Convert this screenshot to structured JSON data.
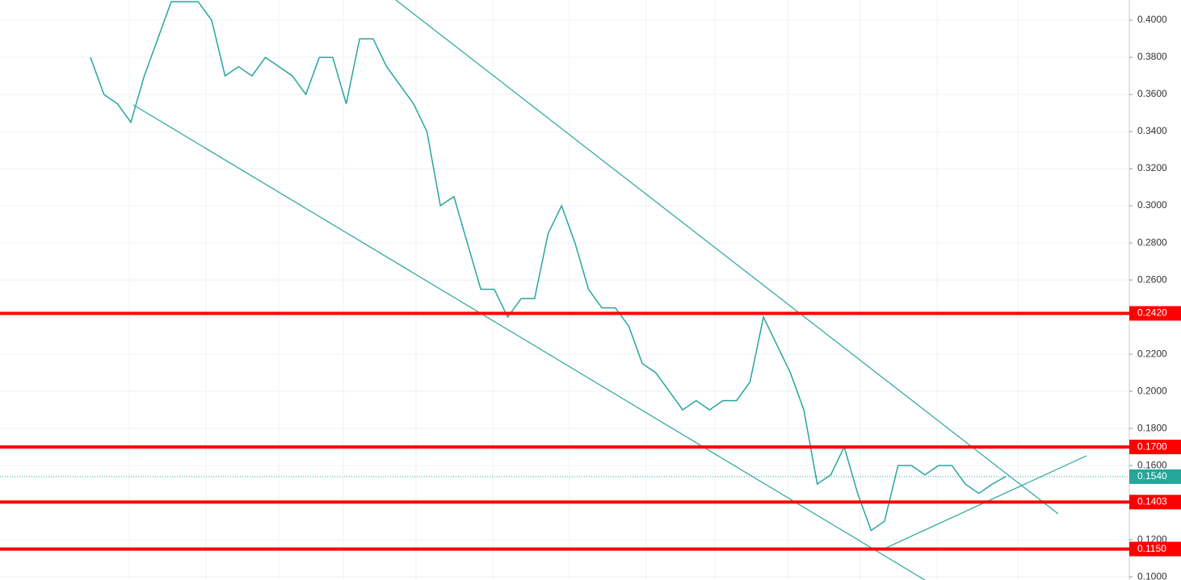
{
  "chart_data": {
    "type": "line",
    "series": [
      {
        "name": null,
        "color": "#26a69a",
        "values": [
          0.38,
          0.36,
          0.355,
          0.345,
          0.37,
          0.39,
          0.41,
          0.41,
          0.41,
          0.4,
          0.37,
          0.375,
          0.37,
          0.38,
          0.375,
          0.37,
          0.36,
          0.38,
          0.38,
          0.355,
          0.39,
          0.39,
          0.375,
          0.365,
          0.355,
          0.34,
          0.3,
          0.305,
          0.28,
          0.255,
          0.255,
          0.24,
          0.25,
          0.25,
          0.285,
          0.3,
          0.28,
          0.255,
          0.245,
          0.245,
          0.235,
          0.215,
          0.21,
          0.2,
          0.19,
          0.195,
          0.19,
          0.195,
          0.195,
          0.205,
          0.24,
          0.225,
          0.21,
          0.19,
          0.15,
          0.155,
          0.17,
          0.145,
          0.125,
          0.13,
          0.16,
          0.16,
          0.155,
          0.16,
          0.16,
          0.15,
          0.145,
          0.15,
          0.154
        ]
      }
    ],
    "ylim": [
      0.0983,
      0.4109
    ],
    "yticks": [
      {
        "value": 0.1,
        "label": "0.1000"
      },
      {
        "value": 0.12,
        "label": "0.1200"
      },
      {
        "value": 0.14,
        "label": "0.1400"
      },
      {
        "value": 0.16,
        "label": "0.1600"
      },
      {
        "value": 0.18,
        "label": "0.1800"
      },
      {
        "value": 0.2,
        "label": "0.2000"
      },
      {
        "value": 0.22,
        "label": "0.2200"
      },
      {
        "value": 0.24,
        "label": "0.2400"
      },
      {
        "value": 0.26,
        "label": "0.2600"
      },
      {
        "value": 0.28,
        "label": "0.2800"
      },
      {
        "value": 0.3,
        "label": "0.3000"
      },
      {
        "value": 0.32,
        "label": "0.3200"
      },
      {
        "value": 0.34,
        "label": "0.3400"
      },
      {
        "value": 0.36,
        "label": "0.3600"
      },
      {
        "value": 0.38,
        "label": "0.3800"
      },
      {
        "value": 0.4,
        "label": "0.4000"
      }
    ],
    "grid": true,
    "levels": [
      {
        "value": 0.242,
        "label": "0.2420"
      },
      {
        "value": 0.17,
        "label": "0.1700"
      },
      {
        "value": 0.1403,
        "label": "0.1403"
      },
      {
        "value": 0.115,
        "label": "0.1150"
      }
    ],
    "level_color": "#ff0000",
    "last_price": {
      "value": 0.154,
      "label": "0.1540"
    }
  }
}
